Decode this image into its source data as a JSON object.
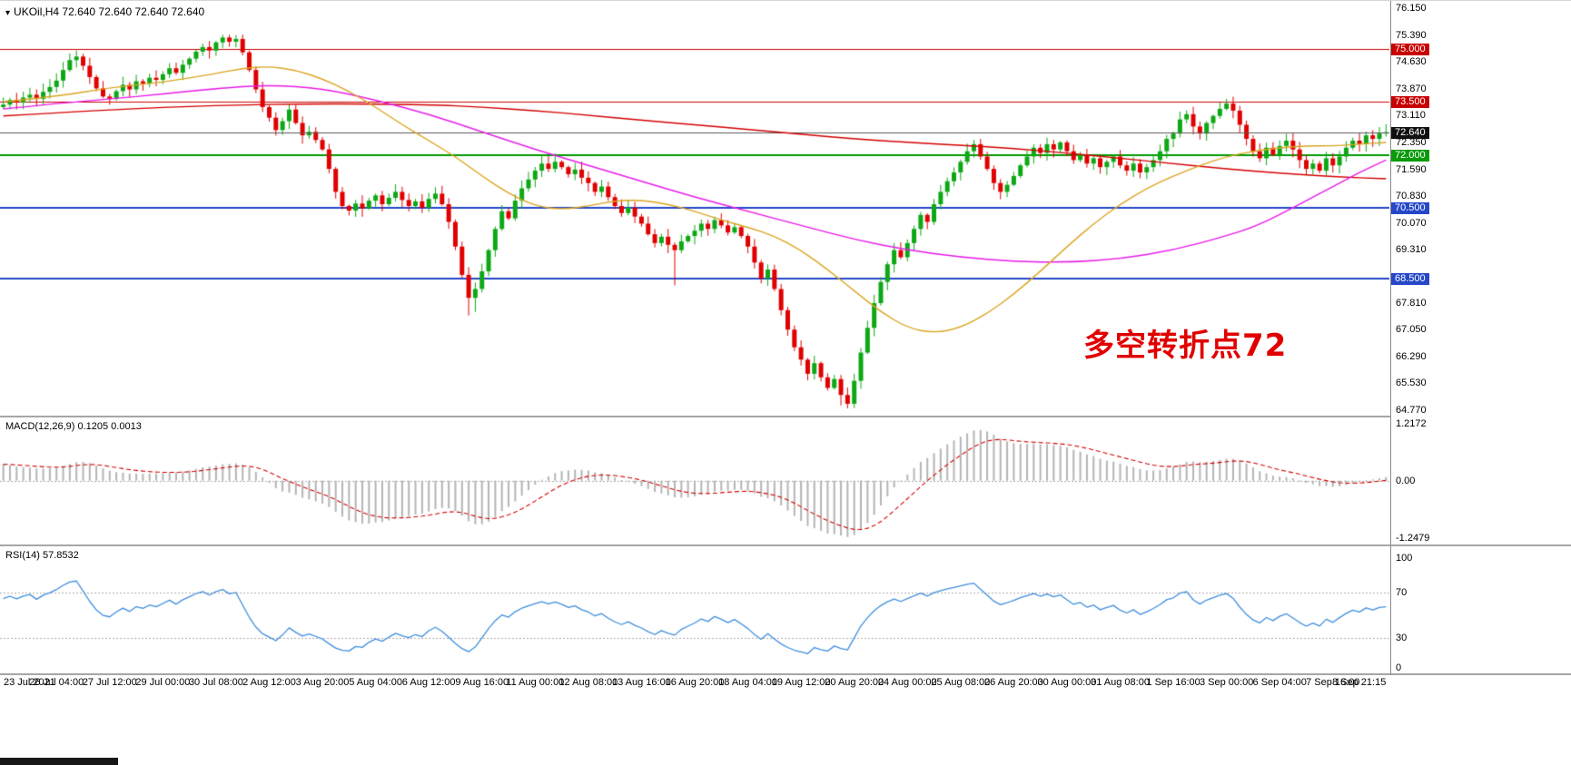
{
  "header": {
    "dropdown_icon": "▾",
    "symbol": "UKOil,H4",
    "ohlc": "72.640 72.640 72.640 72.640"
  },
  "chart_data": {
    "type": "candlestick",
    "symbol": "UKOil",
    "timeframe": "H4",
    "ylim": [
      64.615,
      76.356
    ],
    "bars_per_label": 8,
    "x_labels": [
      "23 Jul 2021",
      "26 Jul 04:00",
      "27 Jul 12:00",
      "29 Jul 00:00",
      "30 Jul 08:00",
      "2 Aug 12:00",
      "3 Aug 20:00",
      "5 Aug 04:00",
      "6 Aug 12:00",
      "9 Aug 16:00",
      "11 Aug 00:00",
      "12 Aug 08:00",
      "13 Aug 16:00",
      "16 Aug 20:00",
      "18 Aug 04:00",
      "19 Aug 12:00",
      "20 Aug 20:00",
      "24 Aug 00:00",
      "25 Aug 08:00",
      "26 Aug 20:00",
      "30 Aug 00:00",
      "31 Aug 08:00",
      "1 Sep 16:00",
      "3 Sep 00:00",
      "6 Sep 04:00",
      "7 Sep 16:00",
      "8 Sep 21:15"
    ],
    "price_ticks": [
      {
        "label": "76.150",
        "price": 76.15
      },
      {
        "label": "75.390",
        "price": 75.39
      },
      {
        "label": "75.000",
        "price": 75.0,
        "bg": "#c80000"
      },
      {
        "label": "74.630",
        "price": 74.63
      },
      {
        "label": "73.870",
        "price": 73.87
      },
      {
        "label": "73.500",
        "price": 73.5,
        "bg": "#c80000"
      },
      {
        "label": "73.110",
        "price": 73.11
      },
      {
        "label": "72.640",
        "price": 72.64,
        "bg": "#101010"
      },
      {
        "label": "72.350",
        "price": 72.35
      },
      {
        "label": "72.000",
        "price": 72.0,
        "bg": "#0a9a0a"
      },
      {
        "label": "71.590",
        "price": 71.59
      },
      {
        "label": "70.830",
        "price": 70.83
      },
      {
        "label": "70.500",
        "price": 70.5,
        "bg": "#2547c8"
      },
      {
        "label": "70.070",
        "price": 70.07
      },
      {
        "label": "69.310",
        "price": 69.31
      },
      {
        "label": "68.500",
        "price": 68.5,
        "bg": "#2547c8"
      },
      {
        "label": "67.810",
        "price": 67.81
      },
      {
        "label": "67.050",
        "price": 67.05
      },
      {
        "label": "66.290",
        "price": 66.29
      },
      {
        "label": "65.530",
        "price": 65.53
      },
      {
        "label": "64.770",
        "price": 64.77
      }
    ],
    "levels": [
      {
        "price": 75.0,
        "color": "#cc0000",
        "width": 1
      },
      {
        "price": 73.5,
        "color": "#cc0000",
        "width": 1
      },
      {
        "price": 72.0,
        "color": "#009a00",
        "width": 2
      },
      {
        "price": 70.5,
        "color": "#2547c8",
        "width": 2
      },
      {
        "price": 68.5,
        "color": "#2547c8",
        "width": 2
      },
      {
        "price": 72.64,
        "color": "#5a5a5a",
        "width": 1,
        "overlay": true
      }
    ],
    "candles": {
      "open0": 73.35,
      "up_color": "#0da815",
      "down_color": "#e00000",
      "closes": [
        73.42,
        73.55,
        73.48,
        73.62,
        73.7,
        73.58,
        73.78,
        73.92,
        74.1,
        74.4,
        74.68,
        74.78,
        74.52,
        74.2,
        73.88,
        73.65,
        73.58,
        73.8,
        73.98,
        73.85,
        74.08,
        74.02,
        74.18,
        74.12,
        74.28,
        74.45,
        74.32,
        74.55,
        74.72,
        74.92,
        75.05,
        74.95,
        75.18,
        75.32,
        75.2,
        75.28,
        74.9,
        74.4,
        73.85,
        73.35,
        73.05,
        72.7,
        72.95,
        73.28,
        72.9,
        72.55,
        72.65,
        72.42,
        72.15,
        71.6,
        70.95,
        70.55,
        70.42,
        70.62,
        70.48,
        70.7,
        70.85,
        70.6,
        70.78,
        70.95,
        70.72,
        70.55,
        70.68,
        70.5,
        70.75,
        70.9,
        70.6,
        70.1,
        69.4,
        68.6,
        67.95,
        68.2,
        68.7,
        69.3,
        69.9,
        70.4,
        70.2,
        70.7,
        71.05,
        71.3,
        71.55,
        71.75,
        71.6,
        71.8,
        71.65,
        71.45,
        71.58,
        71.35,
        71.2,
        70.95,
        71.1,
        70.8,
        70.55,
        70.35,
        70.5,
        70.25,
        70.05,
        69.75,
        69.5,
        69.68,
        69.45,
        69.3,
        69.55,
        69.7,
        69.85,
        70.05,
        69.9,
        70.15,
        70.0,
        69.8,
        69.95,
        69.7,
        69.4,
        68.95,
        68.5,
        68.75,
        68.2,
        67.6,
        67.05,
        66.55,
        66.2,
        65.8,
        66.1,
        65.7,
        65.4,
        65.65,
        65.2,
        64.95,
        65.6,
        66.4,
        67.1,
        67.8,
        68.4,
        68.9,
        69.3,
        69.1,
        69.5,
        69.9,
        70.3,
        70.1,
        70.6,
        70.95,
        71.25,
        71.5,
        71.8,
        72.1,
        72.3,
        71.95,
        71.6,
        71.2,
        70.95,
        71.15,
        71.4,
        71.7,
        71.95,
        72.2,
        72.05,
        72.3,
        72.15,
        72.35,
        72.1,
        71.85,
        72.0,
        71.75,
        71.9,
        71.65,
        71.8,
        71.95,
        71.7,
        71.55,
        71.75,
        71.5,
        71.65,
        71.85,
        72.1,
        72.45,
        72.6,
        73.0,
        73.15,
        72.8,
        72.6,
        72.9,
        73.1,
        73.3,
        73.45,
        73.25,
        72.85,
        72.45,
        72.1,
        71.9,
        72.2,
        72.0,
        72.25,
        72.4,
        72.15,
        71.85,
        71.6,
        71.75,
        71.55,
        71.9,
        71.7,
        71.95,
        72.2,
        72.4,
        72.3,
        72.55,
        72.45,
        72.6,
        72.64
      ],
      "high_overrides": {
        "35": 75.39,
        "146": 72.42,
        "184": 73.58
      },
      "low_overrides": {
        "52": 70.28,
        "70": 67.45,
        "71": 67.55,
        "101": 68.3,
        "126": 64.9,
        "127": 64.82,
        "196": 71.45
      }
    },
    "moving_averages": [
      {
        "name": "ma-slow-red",
        "color": "#d40000",
        "points": [
          [
            0,
            73.1
          ],
          [
            16,
            73.28
          ],
          [
            32,
            73.4
          ],
          [
            48,
            73.45
          ],
          [
            64,
            73.42
          ],
          [
            72,
            73.35
          ],
          [
            80,
            73.25
          ],
          [
            88,
            73.12
          ],
          [
            96,
            72.98
          ],
          [
            104,
            72.85
          ],
          [
            112,
            72.72
          ],
          [
            120,
            72.58
          ],
          [
            128,
            72.45
          ],
          [
            136,
            72.35
          ],
          [
            144,
            72.27
          ],
          [
            152,
            72.18
          ],
          [
            160,
            72.05
          ],
          [
            168,
            71.9
          ],
          [
            176,
            71.75
          ],
          [
            184,
            71.6
          ],
          [
            192,
            71.48
          ],
          [
            200,
            71.38
          ],
          [
            208,
            71.32
          ]
        ]
      },
      {
        "name": "ma-mid-magenta",
        "color": "#e81ce8",
        "points": [
          [
            0,
            73.3
          ],
          [
            8,
            73.45
          ],
          [
            16,
            73.58
          ],
          [
            24,
            73.72
          ],
          [
            32,
            73.88
          ],
          [
            40,
            73.98
          ],
          [
            48,
            73.88
          ],
          [
            56,
            73.55
          ],
          [
            64,
            73.15
          ],
          [
            72,
            72.65
          ],
          [
            80,
            72.15
          ],
          [
            88,
            71.7
          ],
          [
            96,
            71.25
          ],
          [
            104,
            70.8
          ],
          [
            112,
            70.4
          ],
          [
            120,
            70.0
          ],
          [
            128,
            69.6
          ],
          [
            136,
            69.3
          ],
          [
            144,
            69.1
          ],
          [
            152,
            68.98
          ],
          [
            160,
            68.95
          ],
          [
            168,
            69.05
          ],
          [
            176,
            69.3
          ],
          [
            184,
            69.7
          ],
          [
            188,
            69.95
          ],
          [
            192,
            70.3
          ],
          [
            196,
            70.7
          ],
          [
            200,
            71.1
          ],
          [
            204,
            71.5
          ],
          [
            208,
            71.85
          ]
        ]
      },
      {
        "name": "ma-fast-orange",
        "color": "#daa520",
        "points": [
          [
            0,
            73.5
          ],
          [
            8,
            73.65
          ],
          [
            16,
            73.9
          ],
          [
            24,
            74.05
          ],
          [
            32,
            74.3
          ],
          [
            36,
            74.45
          ],
          [
            40,
            74.5
          ],
          [
            44,
            74.4
          ],
          [
            48,
            74.15
          ],
          [
            52,
            73.8
          ],
          [
            56,
            73.35
          ],
          [
            60,
            72.85
          ],
          [
            64,
            72.4
          ],
          [
            68,
            71.95
          ],
          [
            72,
            71.4
          ],
          [
            76,
            70.9
          ],
          [
            80,
            70.55
          ],
          [
            84,
            70.45
          ],
          [
            88,
            70.55
          ],
          [
            92,
            70.7
          ],
          [
            96,
            70.72
          ],
          [
            100,
            70.6
          ],
          [
            104,
            70.4
          ],
          [
            108,
            70.15
          ],
          [
            112,
            69.95
          ],
          [
            116,
            69.7
          ],
          [
            120,
            69.3
          ],
          [
            124,
            68.75
          ],
          [
            128,
            68.15
          ],
          [
            132,
            67.55
          ],
          [
            136,
            67.1
          ],
          [
            140,
            66.95
          ],
          [
            144,
            67.1
          ],
          [
            148,
            67.5
          ],
          [
            152,
            68.05
          ],
          [
            156,
            68.7
          ],
          [
            160,
            69.4
          ],
          [
            164,
            70.05
          ],
          [
            168,
            70.6
          ],
          [
            172,
            71.05
          ],
          [
            176,
            71.4
          ],
          [
            180,
            71.7
          ],
          [
            184,
            71.95
          ],
          [
            188,
            72.1
          ],
          [
            192,
            72.2
          ],
          [
            196,
            72.25
          ],
          [
            200,
            72.25
          ],
          [
            204,
            72.3
          ],
          [
            208,
            72.35
          ]
        ]
      }
    ],
    "macd": {
      "label": "MACD(12,26,9)",
      "display_values": "0.1205 0.0013",
      "params": [
        12,
        26,
        9
      ],
      "range": [
        -1.2479,
        1.2172
      ],
      "axis_ticks": [
        {
          "label": "1.2172",
          "v": 1.2172
        },
        {
          "label": "0.00",
          "v": 0
        },
        {
          "label": "-1.2479",
          "v": -1.2479
        }
      ],
      "histogram_color": "#b4b4b4",
      "signal_color": "#d40000"
    },
    "rsi": {
      "label": "RSI(14)",
      "display_value": "57.8532",
      "period": 14,
      "axis_ticks": [
        {
          "label": "100",
          "v": 100
        },
        {
          "label": "70",
          "v": 70
        },
        {
          "label": "30",
          "v": 30
        },
        {
          "label": "0",
          "v": 0
        }
      ],
      "levels": [
        70,
        30
      ],
      "line_color": "#3e8ede",
      "level_color": "#ababab"
    },
    "annotation": {
      "text": "多空转折点72",
      "color": "#e10000"
    }
  }
}
